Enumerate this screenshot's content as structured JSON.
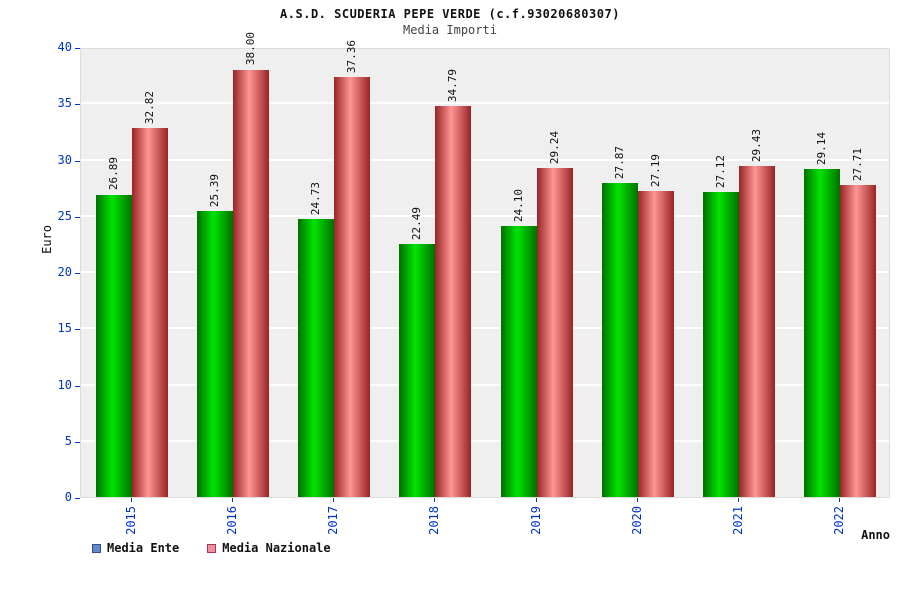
{
  "chart_data": {
    "type": "bar",
    "title": "A.S.D. SCUDERIA PEPE VERDE (c.f.93020680307)",
    "subtitle": "Media Importi",
    "xlabel": "Anno",
    "ylabel": "Euro",
    "ylim": [
      0,
      40
    ],
    "ytick_step": 5,
    "ytick_labels": [
      "0",
      "5",
      "10",
      "15",
      "20",
      "25",
      "30",
      "35",
      "40"
    ],
    "grid": "horizontal-white-on-gray",
    "legend_position": "bottom-left",
    "categories": [
      "2015",
      "2016",
      "2017",
      "2018",
      "2019",
      "2020",
      "2021",
      "2022"
    ],
    "series": [
      {
        "name": "Media Ente",
        "values": [
          "26.89",
          "25.39",
          "24.73",
          "22.49",
          "24.10",
          "27.87",
          "27.12",
          "29.14"
        ],
        "bar_edge_color": "#007000",
        "bar_mid_color": "#00e400",
        "legend_marker_color": "#6688cc"
      },
      {
        "name": "Media Nazionale",
        "values": [
          "32.82",
          "38.00",
          "37.36",
          "34.79",
          "29.24",
          "27.19",
          "29.43",
          "27.71"
        ],
        "bar_edge_color": "#992424",
        "bar_mid_color": "#ff9595",
        "legend_marker_color": "#ee8fa0"
      }
    ],
    "colors": {
      "axis_tick_text": "#0033cc",
      "plot_background": "#efefef",
      "gridline": "#ffffff",
      "text": "#111111"
    }
  }
}
